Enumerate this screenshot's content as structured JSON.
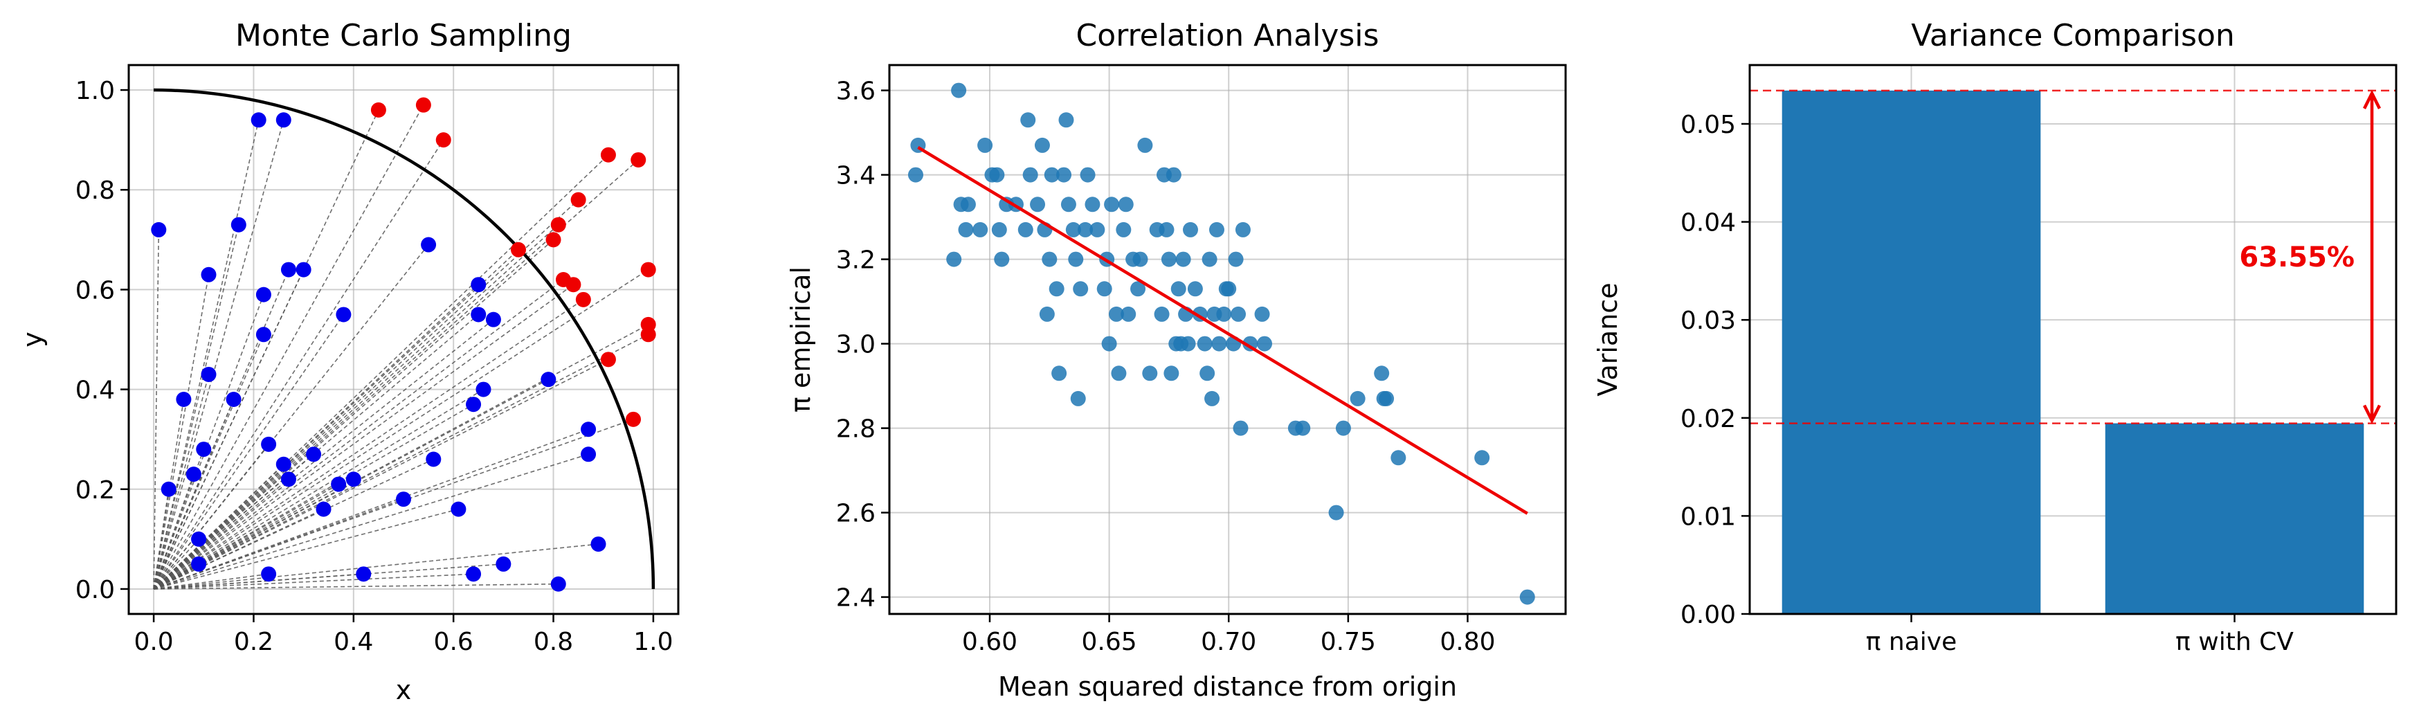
{
  "chart_data": [
    {
      "type": "scatter",
      "title": "Monte Carlo Sampling",
      "xlabel": "x",
      "ylabel": "y",
      "xlim": [
        -0.05,
        1.05
      ],
      "ylim": [
        -0.05,
        1.05
      ],
      "xticks": [
        0.0,
        0.2,
        0.4,
        0.6,
        0.8,
        1.0
      ],
      "yticks": [
        0.0,
        0.2,
        0.4,
        0.6,
        0.8,
        1.0
      ],
      "tick_labels_x": [
        "0.0",
        "0.2",
        "0.4",
        "0.6",
        "0.8",
        "1.0"
      ],
      "tick_labels_y": [
        "0.0",
        "0.2",
        "0.4",
        "0.6",
        "0.8",
        "1.0"
      ],
      "grid": true,
      "quarter_circle_radius": 1.0,
      "lines_from_origin": true,
      "colors": {
        "inside": "#0000ee",
        "outside": "#ee0000",
        "circle": "#000000",
        "rays": "#555555"
      },
      "series": [
        {
          "color": "#0000ee",
          "points": [
            [
              0.01,
              0.72
            ],
            [
              0.03,
              0.2
            ],
            [
              0.06,
              0.38
            ],
            [
              0.08,
              0.23
            ],
            [
              0.09,
              0.05
            ],
            [
              0.09,
              0.1
            ],
            [
              0.1,
              0.28
            ],
            [
              0.11,
              0.63
            ],
            [
              0.11,
              0.43
            ],
            [
              0.16,
              0.38
            ],
            [
              0.17,
              0.73
            ],
            [
              0.21,
              0.94
            ],
            [
              0.22,
              0.59
            ],
            [
              0.22,
              0.51
            ],
            [
              0.23,
              0.29
            ],
            [
              0.23,
              0.03
            ],
            [
              0.26,
              0.94
            ],
            [
              0.27,
              0.64
            ],
            [
              0.26,
              0.25
            ],
            [
              0.27,
              0.22
            ],
            [
              0.3,
              0.64
            ],
            [
              0.32,
              0.27
            ],
            [
              0.34,
              0.16
            ],
            [
              0.37,
              0.21
            ],
            [
              0.38,
              0.55
            ],
            [
              0.4,
              0.22
            ],
            [
              0.42,
              0.03
            ],
            [
              0.5,
              0.18
            ],
            [
              0.55,
              0.69
            ],
            [
              0.56,
              0.26
            ],
            [
              0.61,
              0.16
            ],
            [
              0.64,
              0.37
            ],
            [
              0.64,
              0.03
            ],
            [
              0.65,
              0.61
            ],
            [
              0.65,
              0.55
            ],
            [
              0.66,
              0.4
            ],
            [
              0.68,
              0.54
            ],
            [
              0.7,
              0.05
            ],
            [
              0.79,
              0.42
            ],
            [
              0.81,
              0.01
            ],
            [
              0.87,
              0.32
            ],
            [
              0.87,
              0.27
            ],
            [
              0.89,
              0.09
            ]
          ]
        },
        {
          "color": "#ee0000",
          "points": [
            [
              0.45,
              0.96
            ],
            [
              0.54,
              0.97
            ],
            [
              0.58,
              0.9
            ],
            [
              0.73,
              0.68
            ],
            [
              0.8,
              0.7
            ],
            [
              0.81,
              0.73
            ],
            [
              0.82,
              0.62
            ],
            [
              0.84,
              0.61
            ],
            [
              0.85,
              0.78
            ],
            [
              0.86,
              0.58
            ],
            [
              0.91,
              0.87
            ],
            [
              0.91,
              0.46
            ],
            [
              0.96,
              0.34
            ],
            [
              0.97,
              0.86
            ],
            [
              0.99,
              0.64
            ],
            [
              0.99,
              0.53
            ],
            [
              0.99,
              0.51
            ]
          ]
        }
      ]
    },
    {
      "type": "scatter",
      "title": "Correlation Analysis",
      "xlabel": "Mean squared distance from origin",
      "ylabel": "π empirical",
      "xlim": [
        0.558,
        0.841
      ],
      "ylim": [
        2.36,
        3.66
      ],
      "xticks": [
        0.6,
        0.65,
        0.7,
        0.75,
        0.8
      ],
      "yticks": [
        2.4,
        2.6,
        2.8,
        3.0,
        3.2,
        3.4,
        3.6
      ],
      "tick_labels_x": [
        "0.60",
        "0.65",
        "0.70",
        "0.75",
        "0.80"
      ],
      "tick_labels_y": [
        "2.4",
        "2.6",
        "2.8",
        "3.0",
        "3.2",
        "3.4",
        "3.6"
      ],
      "grid": true,
      "colors": {
        "points": "#1f77b4",
        "fit": "#ee0000"
      },
      "points": [
        [
          0.57,
          3.47
        ],
        [
          0.569,
          3.4
        ],
        [
          0.587,
          3.6
        ],
        [
          0.588,
          3.33
        ],
        [
          0.59,
          3.27
        ],
        [
          0.591,
          3.33
        ],
        [
          0.585,
          3.2
        ],
        [
          0.596,
          3.27
        ],
        [
          0.598,
          3.47
        ],
        [
          0.601,
          3.4
        ],
        [
          0.603,
          3.4
        ],
        [
          0.604,
          3.27
        ],
        [
          0.605,
          3.2
        ],
        [
          0.607,
          3.33
        ],
        [
          0.611,
          3.33
        ],
        [
          0.615,
          3.27
        ],
        [
          0.616,
          3.53
        ],
        [
          0.617,
          3.4
        ],
        [
          0.62,
          3.33
        ],
        [
          0.622,
          3.47
        ],
        [
          0.623,
          3.27
        ],
        [
          0.624,
          3.07
        ],
        [
          0.625,
          3.2
        ],
        [
          0.626,
          3.4
        ],
        [
          0.628,
          3.13
        ],
        [
          0.629,
          2.93
        ],
        [
          0.631,
          3.4
        ],
        [
          0.632,
          3.53
        ],
        [
          0.633,
          3.33
        ],
        [
          0.635,
          3.27
        ],
        [
          0.636,
          3.2
        ],
        [
          0.637,
          2.87
        ],
        [
          0.638,
          3.13
        ],
        [
          0.64,
          3.27
        ],
        [
          0.641,
          3.4
        ],
        [
          0.643,
          3.33
        ],
        [
          0.645,
          3.27
        ],
        [
          0.648,
          3.13
        ],
        [
          0.649,
          3.2
        ],
        [
          0.65,
          3.0
        ],
        [
          0.651,
          3.33
        ],
        [
          0.653,
          3.07
        ],
        [
          0.654,
          2.93
        ],
        [
          0.656,
          3.27
        ],
        [
          0.657,
          3.33
        ],
        [
          0.658,
          3.07
        ],
        [
          0.66,
          3.2
        ],
        [
          0.662,
          3.13
        ],
        [
          0.663,
          3.2
        ],
        [
          0.665,
          3.47
        ],
        [
          0.667,
          2.93
        ],
        [
          0.67,
          3.27
        ],
        [
          0.672,
          3.07
        ],
        [
          0.673,
          3.4
        ],
        [
          0.674,
          3.27
        ],
        [
          0.675,
          3.2
        ],
        [
          0.676,
          2.93
        ],
        [
          0.677,
          3.4
        ],
        [
          0.678,
          3.0
        ],
        [
          0.679,
          3.13
        ],
        [
          0.68,
          3.0
        ],
        [
          0.681,
          3.2
        ],
        [
          0.682,
          3.07
        ],
        [
          0.683,
          3.0
        ],
        [
          0.684,
          3.27
        ],
        [
          0.686,
          3.13
        ],
        [
          0.688,
          3.07
        ],
        [
          0.69,
          3.0
        ],
        [
          0.691,
          2.93
        ],
        [
          0.692,
          3.2
        ],
        [
          0.693,
          2.87
        ],
        [
          0.694,
          3.07
        ],
        [
          0.695,
          3.27
        ],
        [
          0.696,
          3.0
        ],
        [
          0.698,
          3.07
        ],
        [
          0.699,
          3.13
        ],
        [
          0.7,
          3.13
        ],
        [
          0.702,
          3.0
        ],
        [
          0.703,
          3.2
        ],
        [
          0.704,
          3.07
        ],
        [
          0.705,
          2.8
        ],
        [
          0.706,
          3.27
        ],
        [
          0.709,
          3.0
        ],
        [
          0.714,
          3.07
        ],
        [
          0.715,
          3.0
        ],
        [
          0.728,
          2.8
        ],
        [
          0.731,
          2.8
        ],
        [
          0.745,
          2.6
        ],
        [
          0.748,
          2.8
        ],
        [
          0.754,
          2.87
        ],
        [
          0.764,
          2.93
        ],
        [
          0.765,
          2.87
        ],
        [
          0.766,
          2.87
        ],
        [
          0.771,
          2.73
        ],
        [
          0.806,
          2.73
        ],
        [
          0.825,
          2.4
        ]
      ],
      "fit_line": [
        [
          0.57,
          3.465
        ],
        [
          0.825,
          2.598
        ]
      ]
    },
    {
      "type": "bar",
      "title": "Variance Comparison",
      "xlabel": "",
      "ylabel": "Variance",
      "categories": [
        "π naive",
        "π with CV"
      ],
      "values": [
        0.0534,
        0.01945
      ],
      "ylim": [
        0.0,
        0.056
      ],
      "yticks": [
        0.0,
        0.01,
        0.02,
        0.03,
        0.04,
        0.05
      ],
      "tick_labels_y": [
        "0.00",
        "0.01",
        "0.02",
        "0.03",
        "0.04",
        "0.05"
      ],
      "grid": true,
      "colors": {
        "bars": "#1f77b4",
        "reference": "#ee0000"
      },
      "reference_lines": [
        0.0534,
        0.01945
      ],
      "annotation": {
        "text": "63.55%",
        "from": 0.0534,
        "to": 0.01945,
        "color": "#ee0000"
      }
    }
  ]
}
